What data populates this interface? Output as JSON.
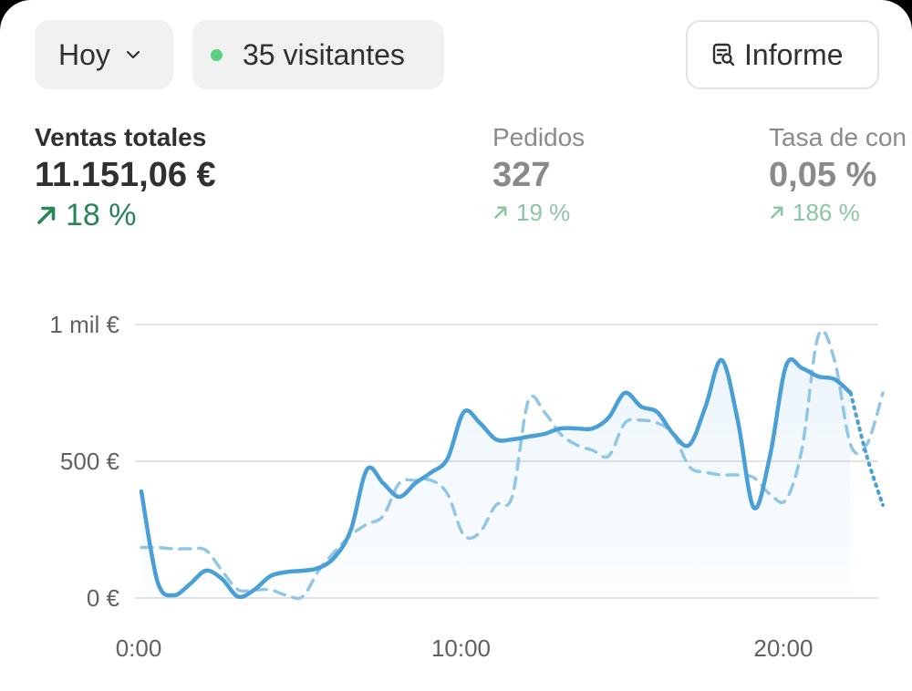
{
  "toolbar": {
    "date_label": "Hoy",
    "visitors_label": "35 visitantes",
    "report_label": "Informe",
    "icons": {
      "date_dropdown": "chevron-down-icon",
      "visitors_status": "live-dot-icon",
      "report": "report-search-icon"
    },
    "live_color": "#5bd17f"
  },
  "metrics": [
    {
      "label": "Ventas totales",
      "value": "11.151,06 €",
      "delta": "18 %",
      "selected": true
    },
    {
      "label": "Pedidos",
      "value": "327",
      "delta": "19 %",
      "selected": false
    },
    {
      "label": "Tasa de con",
      "value": "0,05 %",
      "delta": "186 %",
      "selected": false
    }
  ],
  "colors": {
    "current_series": "#4a9fd6",
    "previous_series": "#92c6e6",
    "positive_delta": "#29845a",
    "gridline": "#e3e3e3"
  },
  "chart_data": {
    "type": "line",
    "y_tick_labels": [
      "1 mil €",
      "500 €",
      "0 €"
    ],
    "y_ticks": [
      1000,
      500,
      0
    ],
    "x_tick_labels": [
      "0:00",
      "10:00",
      "20:00"
    ],
    "x_ticks": [
      0,
      10,
      20
    ],
    "ylim": [
      0,
      1000
    ],
    "xlim": [
      0,
      23
    ],
    "grid": true,
    "legend": "none",
    "series": [
      {
        "style": "solid",
        "x": [
          0,
          0.5,
          1,
          1.5,
          2,
          2.5,
          3,
          3.5,
          4,
          4.5,
          5,
          5.5,
          6,
          6.5,
          7,
          7.5,
          8,
          8.5,
          9,
          9.5,
          10,
          10.5,
          11,
          11.5,
          12,
          12.5,
          13,
          13.5,
          14,
          14.5,
          15,
          15.5,
          16,
          16.5,
          17,
          17.5,
          18,
          18.5,
          19,
          19.5,
          20,
          20.5,
          21,
          21.5,
          22
        ],
        "values": [
          390,
          60,
          10,
          50,
          100,
          70,
          5,
          30,
          80,
          95,
          100,
          110,
          150,
          250,
          470,
          420,
          370,
          420,
          460,
          510,
          680,
          640,
          580,
          580,
          590,
          600,
          620,
          620,
          620,
          660,
          750,
          700,
          680,
          600,
          560,
          700,
          870,
          650,
          330,
          520,
          850,
          840,
          810,
          800,
          750
        ]
      },
      {
        "style": "dotted",
        "x": [
          22,
          22.5,
          23
        ],
        "values": [
          750,
          520,
          340
        ]
      },
      {
        "style": "dashed",
        "x": [
          0,
          0.5,
          1,
          1.5,
          2,
          2.5,
          3,
          3.5,
          4,
          4.5,
          5,
          5.5,
          6,
          6.5,
          7,
          7.5,
          8,
          8.5,
          9,
          9.5,
          10,
          10.5,
          11,
          11.5,
          12,
          12.5,
          13,
          13.5,
          14,
          14.5,
          15,
          15.5,
          16,
          16.5,
          17,
          17.5,
          18,
          18.5,
          19,
          19.5,
          20,
          20.5,
          21,
          21.5,
          22,
          22.5,
          23
        ],
        "values": [
          185,
          185,
          180,
          180,
          175,
          100,
          30,
          30,
          30,
          10,
          5,
          100,
          170,
          230,
          270,
          300,
          420,
          430,
          430,
          380,
          230,
          240,
          340,
          370,
          720,
          680,
          600,
          560,
          540,
          520,
          640,
          650,
          640,
          600,
          480,
          460,
          450,
          450,
          440,
          380,
          360,
          550,
          960,
          870,
          560,
          560,
          750
        ]
      }
    ]
  }
}
